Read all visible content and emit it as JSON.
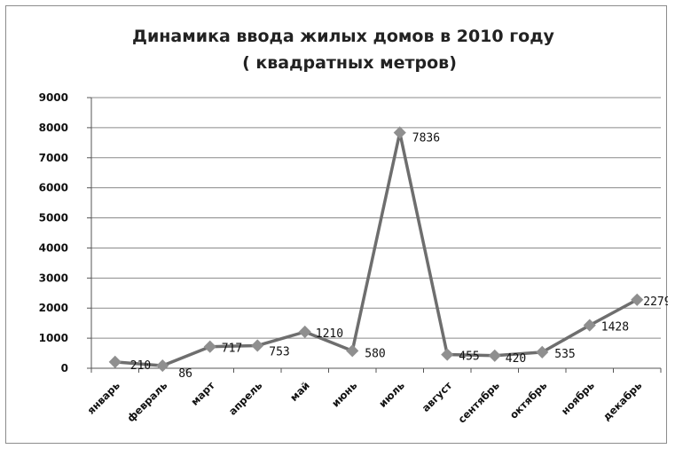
{
  "chart_data": {
    "type": "line",
    "title": "Динамика ввода  жилых домов в  2010 году",
    "subtitle": "( квадратных метров)",
    "xlabel": "",
    "ylabel": "",
    "categories": [
      "январь",
      "февраль",
      "март",
      "апрель",
      "май",
      "июнь",
      "июль",
      "август",
      "сентябрь",
      "октябрь",
      "ноябрь",
      "декабрь"
    ],
    "series": [
      {
        "values": [
          210,
          86,
          717,
          753,
          1210,
          580,
          7836,
          455,
          420,
          535,
          1428,
          2279
        ]
      }
    ],
    "data_labels": [
      "210",
      "86",
      "717",
      "753",
      "1210",
      "580",
      "7836",
      "455",
      "420",
      "535",
      "1428",
      "2279"
    ],
    "ylim": [
      0,
      9000
    ],
    "y_ticks": [
      "0",
      "1000",
      "2000",
      "3000",
      "4000",
      "5000",
      "6000",
      "7000",
      "8000",
      "9000"
    ],
    "grid": "horizontal",
    "legend": "none",
    "colors": {
      "line": "#6e6e6e",
      "marker": "#8f8f8f",
      "grid": "#8a8a8a",
      "axis": "#555555"
    }
  }
}
